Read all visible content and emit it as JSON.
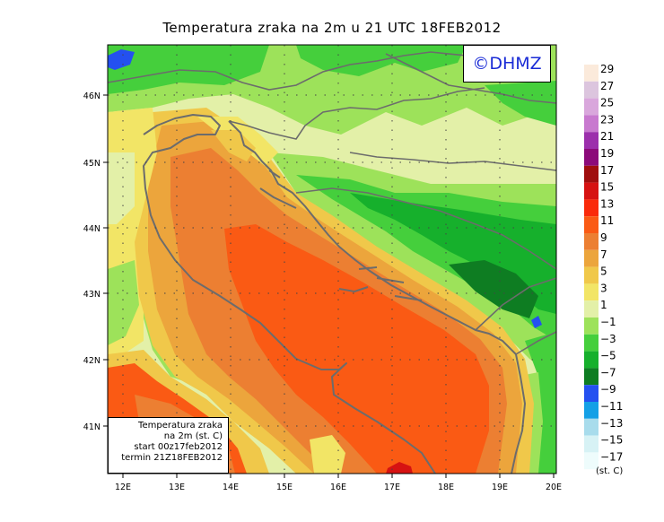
{
  "title": "Temperatura zraka na 2m u 21 UTC 18FEB2012",
  "logo": "©DHMZ",
  "info_box": {
    "line1": "Temperatura zraka",
    "line2": "na 2m (st. C)",
    "line3": "start 00z17feb2012",
    "line4": "termin 21Z18FEB2012"
  },
  "lat_ticks": [
    "46N",
    "45N",
    "44N",
    "43N",
    "42N",
    "41N"
  ],
  "lon_ticks": [
    "12E",
    "13E",
    "14E",
    "15E",
    "16E",
    "17E",
    "18E",
    "19E",
    "20E"
  ],
  "colorbar": {
    "unit": "(st. C)",
    "bins": [
      {
        "label": "29",
        "color": "#fbeadb"
      },
      {
        "label": "27",
        "color": "#dcc5de"
      },
      {
        "label": "25",
        "color": "#d9a7dc"
      },
      {
        "label": "23",
        "color": "#c879cf"
      },
      {
        "label": "21",
        "color": "#9c2fac"
      },
      {
        "label": "19",
        "color": "#8c0a7a"
      },
      {
        "label": "17",
        "color": "#a00e0e"
      },
      {
        "label": "15",
        "color": "#d61212"
      },
      {
        "label": "13",
        "color": "#fa2a0a"
      },
      {
        "label": "11",
        "color": "#fa5a14"
      },
      {
        "label": "9",
        "color": "#ec7f32"
      },
      {
        "label": "7",
        "color": "#eca53c"
      },
      {
        "label": "5",
        "color": "#f0c84a"
      },
      {
        "label": "3",
        "color": "#f2e566"
      },
      {
        "label": "1",
        "color": "#e3f0a8"
      },
      {
        "label": "−1",
        "color": "#9de25a"
      },
      {
        "label": "−3",
        "color": "#45cf3c"
      },
      {
        "label": "−5",
        "color": "#16b02c"
      },
      {
        "label": "−7",
        "color": "#0e7d22"
      },
      {
        "label": "−9",
        "color": "#2450f0"
      },
      {
        "label": "−11",
        "color": "#14a0e6"
      },
      {
        "label": "−13",
        "color": "#a8dcec"
      },
      {
        "label": "−15",
        "color": "#d7f2f5"
      },
      {
        "label": "−17",
        "color": "#eefcfc"
      }
    ]
  }
}
